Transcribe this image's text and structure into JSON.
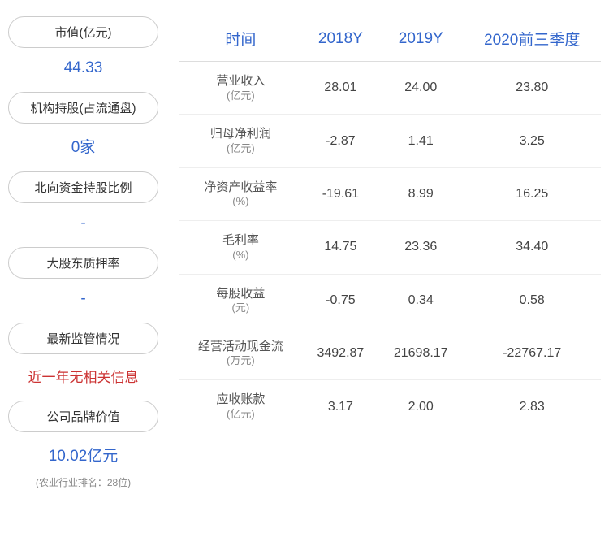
{
  "left": {
    "items": [
      {
        "label": "市值(亿元)",
        "value": "44.33",
        "value_color": "#3366cc"
      },
      {
        "label": "机构持股(占流通盘)",
        "value": "0家",
        "value_color": "#3366cc"
      },
      {
        "label": "北向资金持股比例",
        "value": "-",
        "value_color": "#3366cc"
      },
      {
        "label": "大股东质押率",
        "value": "-",
        "value_color": "#3366cc"
      },
      {
        "label": "最新监管情况",
        "value": "近一年无相关信息",
        "value_color": "#cc3333"
      },
      {
        "label": "公司品牌价值",
        "value": "10.02亿元",
        "value_color": "#3366cc",
        "sub": "(农业行业排名：28位)"
      }
    ]
  },
  "table": {
    "columns": [
      "时间",
      "2018Y",
      "2019Y",
      "2020前三季度"
    ],
    "rows": [
      {
        "label": "营业收入",
        "unit": "(亿元)",
        "v1": "28.01",
        "v2": "24.00",
        "v3": "23.80"
      },
      {
        "label": "归母净利润",
        "unit": "(亿元)",
        "v1": "-2.87",
        "v2": "1.41",
        "v3": "3.25"
      },
      {
        "label": "净资产收益率",
        "unit": "(%)",
        "v1": "-19.61",
        "v2": "8.99",
        "v3": "16.25"
      },
      {
        "label": "毛利率",
        "unit": "(%)",
        "v1": "14.75",
        "v2": "23.36",
        "v3": "34.40"
      },
      {
        "label": "每股收益",
        "unit": "(元)",
        "v1": "-0.75",
        "v2": "0.34",
        "v3": "0.58"
      },
      {
        "label": "经营活动现金流",
        "unit": "(万元)",
        "v1": "3492.87",
        "v2": "21698.17",
        "v3": "-22767.17"
      },
      {
        "label": "应收账款",
        "unit": "(亿元)",
        "v1": "3.17",
        "v2": "2.00",
        "v3": "2.83"
      }
    ],
    "header_color": "#3366cc",
    "text_color": "#444444",
    "border_color": "#eeeeee"
  }
}
